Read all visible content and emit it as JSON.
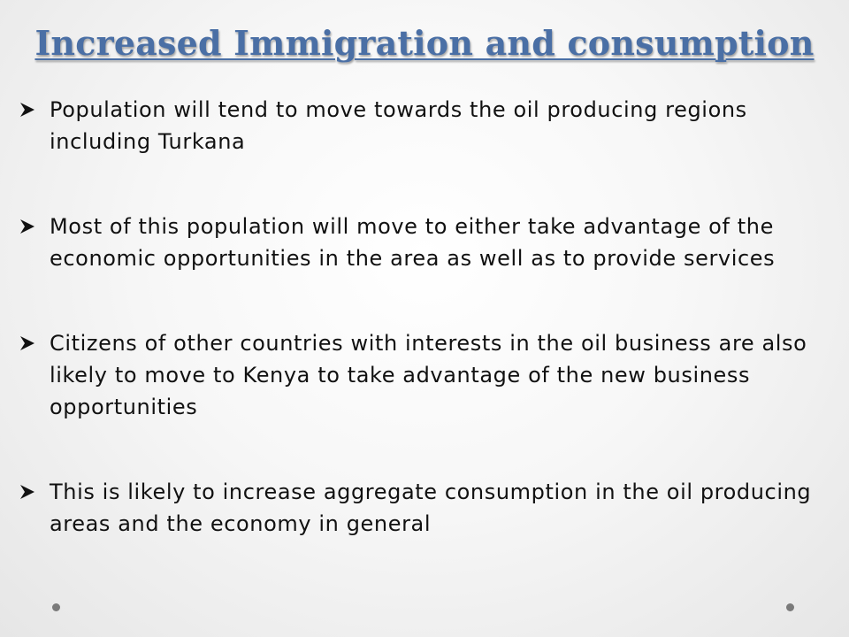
{
  "slide": {
    "title": "Increased Immigration and consumption",
    "bullets": [
      {
        "icon": "arrowhead-bullet-icon",
        "text": "Population will tend to move towards the oil producing regions including Turkana"
      },
      {
        "icon": "arrowhead-bullet-icon",
        "text": "Most of this population will move to either take advantage of the economic opportunities in the area as well as to provide services"
      },
      {
        "icon": "arrowhead-bullet-icon",
        "text": "Citizens of other countries with interests in the oil business are also likely to move to Kenya to take advantage of the new business opportunities"
      },
      {
        "icon": "arrowhead-bullet-icon",
        "text": "This is likely to increase aggregate consumption in the oil producing areas and the economy in general"
      }
    ],
    "colors": {
      "title": "#4a6fa5",
      "text": "#111111",
      "decor_dots": "#7a7a7a"
    }
  }
}
